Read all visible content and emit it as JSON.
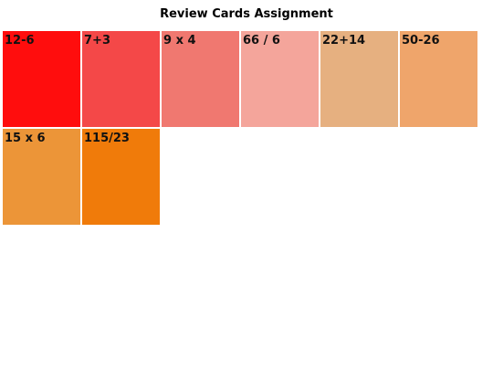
{
  "header": {
    "title": "Review Cards Assignment"
  },
  "cards": [
    {
      "label": "12-6"
    },
    {
      "label": "7+3"
    },
    {
      "label": "9 x 4"
    },
    {
      "label": "66 / 6"
    },
    {
      "label": "22+14"
    },
    {
      "label": "50-26"
    },
    {
      "label": "15 x 6"
    },
    {
      "label": "115/23"
    }
  ]
}
